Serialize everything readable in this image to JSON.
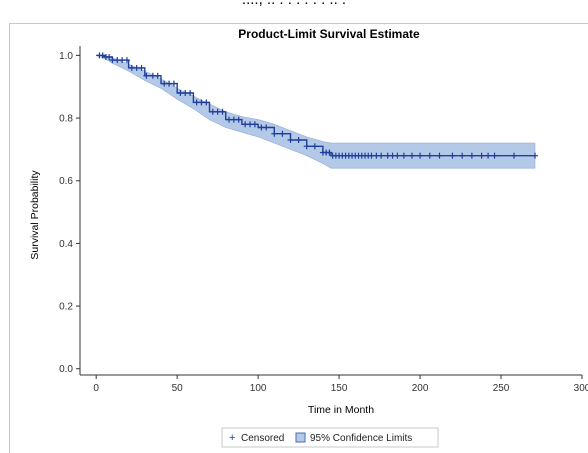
{
  "caption_fragment": "....,  .. . .  . . . . .. .",
  "chart_data": {
    "type": "line",
    "title": "Product-Limit Survival Estimate",
    "xlabel": "Time in Month",
    "ylabel": "Survival Probability",
    "xlim": [
      -10,
      300
    ],
    "ylim": [
      -0.02,
      1.03
    ],
    "xticks": [
      0,
      50,
      100,
      150,
      200,
      250,
      300
    ],
    "yticks": [
      0.0,
      0.2,
      0.4,
      0.6,
      0.8,
      1.0
    ],
    "ytick_labels": [
      "0.0",
      "0.2",
      "0.4",
      "0.6",
      "0.8",
      "1.0"
    ],
    "grid": false,
    "legend_position": "bottom",
    "legend": [
      {
        "name": "Censored",
        "marker": "+"
      },
      {
        "name": "95% Confidence Limits",
        "marker": "band"
      }
    ],
    "colors": {
      "line": "#1f3f99",
      "band": "#b4c9e8",
      "band_stroke": "#8eaad6"
    },
    "survival_curve": {
      "x": [
        0,
        5,
        10,
        20,
        30,
        40,
        50,
        60,
        70,
        80,
        90,
        100,
        110,
        120,
        130,
        140,
        145,
        160,
        200,
        250,
        271
      ],
      "y": [
        1.0,
        0.995,
        0.985,
        0.96,
        0.935,
        0.91,
        0.88,
        0.85,
        0.82,
        0.795,
        0.78,
        0.77,
        0.75,
        0.73,
        0.71,
        0.69,
        0.68,
        0.68,
        0.68,
        0.68,
        0.68
      ]
    },
    "confidence_band": {
      "x": [
        0,
        5,
        10,
        20,
        30,
        40,
        50,
        60,
        70,
        80,
        90,
        100,
        110,
        120,
        130,
        140,
        145,
        200,
        271
      ],
      "lower": [
        1.0,
        0.99,
        0.975,
        0.95,
        0.92,
        0.895,
        0.86,
        0.83,
        0.795,
        0.77,
        0.755,
        0.74,
        0.72,
        0.7,
        0.68,
        0.655,
        0.64,
        0.64,
        0.64
      ],
      "upper": [
        1.0,
        1.0,
        0.993,
        0.972,
        0.95,
        0.925,
        0.895,
        0.87,
        0.845,
        0.82,
        0.805,
        0.795,
        0.78,
        0.76,
        0.74,
        0.725,
        0.72,
        0.72,
        0.72
      ]
    },
    "censored_points": {
      "x": [
        2,
        4,
        6,
        8,
        10,
        13,
        16,
        19,
        22,
        25,
        28,
        31,
        35,
        38,
        42,
        45,
        48,
        52,
        55,
        58,
        62,
        65,
        68,
        72,
        75,
        78,
        82,
        85,
        88,
        92,
        95,
        98,
        102,
        105,
        110,
        115,
        120,
        125,
        130,
        135,
        140,
        142,
        144,
        146,
        148,
        150,
        152,
        154,
        156,
        158,
        160,
        162,
        164,
        166,
        168,
        170,
        173,
        176,
        180,
        183,
        186,
        190,
        195,
        200,
        206,
        212,
        220,
        226,
        232,
        238,
        242,
        246,
        258,
        271
      ]
    }
  }
}
